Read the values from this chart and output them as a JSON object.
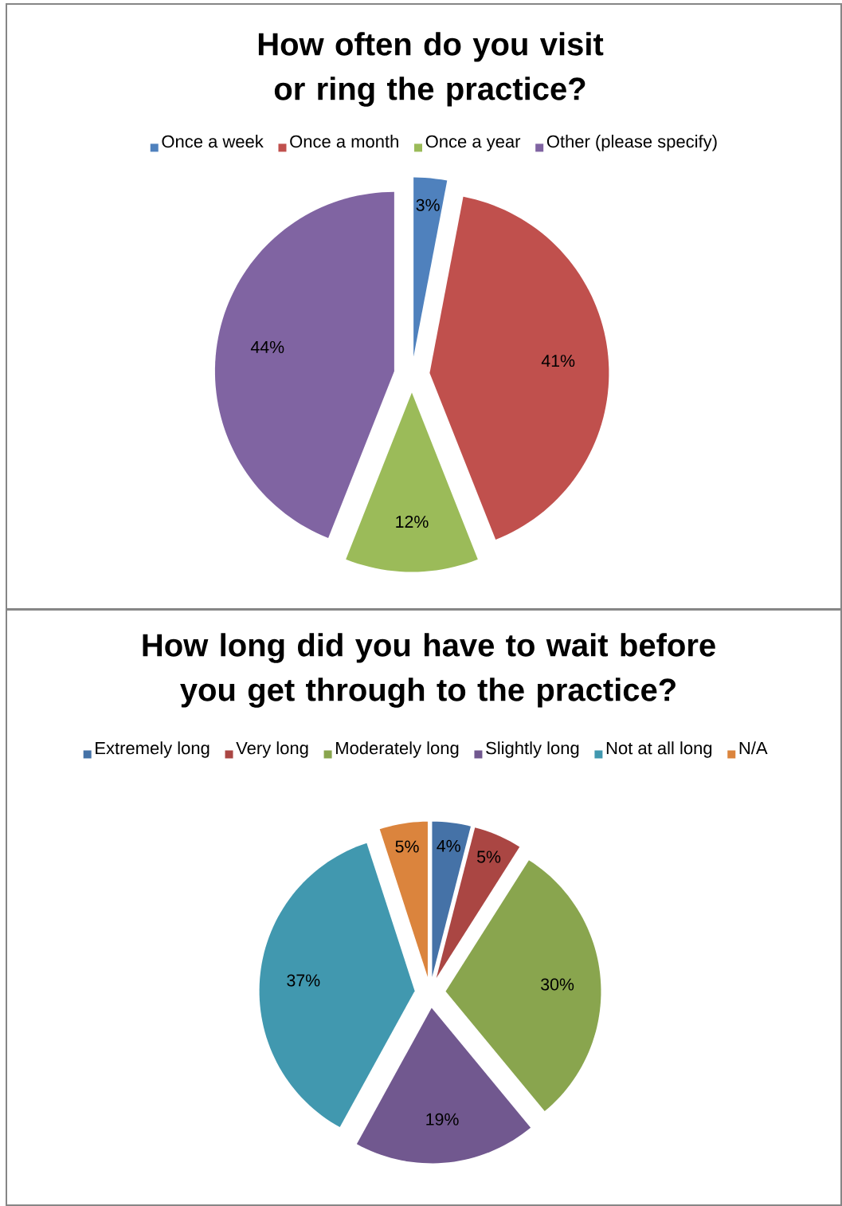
{
  "chart_data": [
    {
      "type": "pie",
      "title": "How often do you visit or ring the practice?",
      "legend": "top",
      "categories": [
        "Once a week",
        "Once a month",
        "Once a year",
        "Other (please specify)"
      ],
      "values": [
        3,
        41,
        12,
        44
      ],
      "colors": [
        "#4f81bd",
        "#c0504d",
        "#9bbb59",
        "#8064a2"
      ],
      "value_labels": [
        "3%",
        "41%",
        "12%",
        "44%"
      ]
    },
    {
      "type": "pie",
      "title": "How long did you have to wait before you get through to the practice?",
      "legend": "top",
      "categories": [
        "Extremely long",
        "Very long",
        "Moderately long",
        "Slightly long",
        "Not at all long",
        "N/A"
      ],
      "values": [
        4,
        5,
        30,
        19,
        37,
        5
      ],
      "colors": [
        "#4572a7",
        "#aa4643",
        "#89a54e",
        "#71588f",
        "#4198af",
        "#db843d"
      ],
      "value_labels": [
        "4%",
        "5%",
        "30%",
        "19%",
        "37%",
        "5%"
      ]
    }
  ]
}
